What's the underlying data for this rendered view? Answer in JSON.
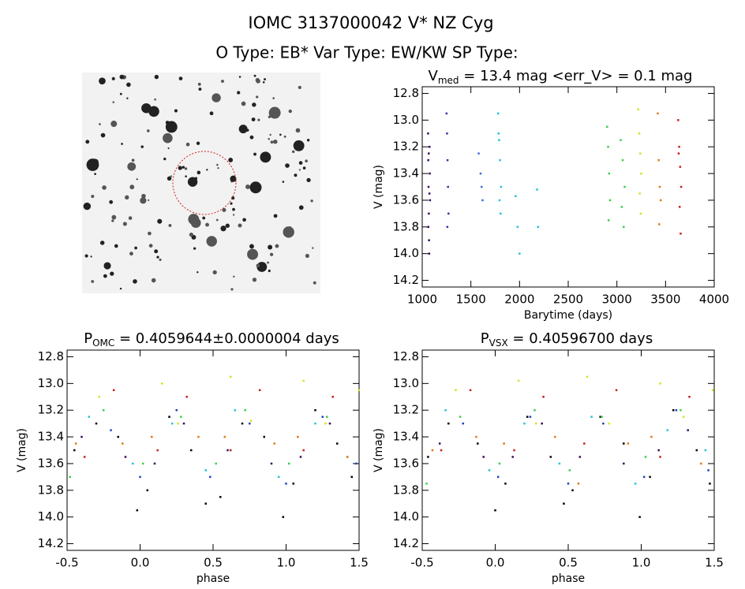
{
  "header": {
    "title": "IOMC 3137000042   V* NZ Cyg",
    "subtitle": "O Type: EB*  Var Type: EW/KW  SP Type:"
  },
  "chart_data": [
    {
      "type": "scatter",
      "title": {
        "main": "V",
        "sub": "med",
        "rest": " = 13.4 mag <err_V> = 0.1 mag"
      },
      "xlabel": "Barytime (days)",
      "ylabel": "V (mag)",
      "xlim": [
        1000,
        4000
      ],
      "xticks": [
        1000,
        1500,
        2000,
        2500,
        3000,
        3500,
        4000
      ],
      "ylim": [
        14.25,
        12.75
      ],
      "yticks": [
        12.8,
        {
          "value": 13,
          "label": "13.0"
        },
        13.2,
        13.4,
        13.6,
        13.8,
        {
          "value": 14,
          "label": "14.0"
        },
        14.2
      ],
      "series": [
        {
          "color": "#3a0a5e",
          "x": [
            1060,
            1062,
            1065,
            1068,
            1070,
            1072,
            1075,
            1078,
            1080,
            1063,
            1067,
            1074
          ],
          "values": [
            13.1,
            13.3,
            13.5,
            13.7,
            13.9,
            14.0,
            13.2,
            13.4,
            13.6,
            13.8,
            13.25,
            13.55
          ]
        },
        {
          "color": "#4b2ca8",
          "x": [
            1250,
            1255,
            1260,
            1265,
            1270,
            1258
          ],
          "values": [
            12.95,
            13.1,
            13.3,
            13.5,
            13.7,
            13.8
          ]
        },
        {
          "color": "#3a6fd8",
          "x": [
            1580,
            1600,
            1620,
            1610
          ],
          "values": [
            13.25,
            13.4,
            13.6,
            13.5
          ]
        },
        {
          "color": "#22c2e0",
          "x": [
            1780,
            1790,
            1800,
            1810,
            1795,
            1805,
            1785,
            1980,
            2000,
            2180,
            2190,
            1960
          ],
          "values": [
            12.95,
            13.15,
            13.3,
            13.5,
            13.6,
            13.7,
            13.1,
            13.8,
            14.0,
            13.52,
            13.8,
            13.57
          ]
        },
        {
          "color": "#3ad048",
          "x": [
            2900,
            2910,
            2920,
            2930,
            2915,
            3040,
            3060,
            3080,
            3050,
            3070
          ],
          "values": [
            13.05,
            13.2,
            13.4,
            13.6,
            13.75,
            13.15,
            13.3,
            13.5,
            13.65,
            13.8
          ]
        },
        {
          "color": "#d8e020",
          "x": [
            3220,
            3230,
            3240,
            3250,
            3235,
            3245
          ],
          "values": [
            12.92,
            13.1,
            13.25,
            13.4,
            13.55,
            13.7
          ]
        },
        {
          "color": "#e07818",
          "x": [
            3420,
            3430,
            3440,
            3450,
            3435
          ],
          "values": [
            12.95,
            13.3,
            13.5,
            13.6,
            13.78
          ]
        },
        {
          "color": "#c8201c",
          "x": [
            3630,
            3640,
            3650,
            3660,
            3645,
            3655,
            3635
          ],
          "values": [
            13.0,
            13.2,
            13.35,
            13.5,
            13.65,
            13.85,
            13.25
          ]
        }
      ]
    },
    {
      "type": "scatter",
      "title": {
        "main": "P",
        "sub": "OMC",
        "rest": " = 0.4059644±0.0000004 days"
      },
      "xlabel": "phase",
      "ylabel": "V (mag)",
      "xlim": [
        -0.5,
        1.5
      ],
      "xticks": [
        -0.5,
        {
          "value": 0,
          "label": "0.0"
        },
        0.5,
        {
          "value": 1,
          "label": "1.0"
        },
        1.5
      ],
      "ylim": [
        14.25,
        12.75
      ],
      "yticks": [
        12.8,
        {
          "value": 13,
          "label": "13.0"
        },
        13.2,
        13.4,
        13.6,
        13.8,
        {
          "value": 14,
          "label": "14.0"
        },
        14.2
      ],
      "series": [
        {
          "color": "#000000",
          "x": [
            -0.45,
            -0.3,
            -0.15,
            -0.02,
            0.05,
            0.2,
            0.35,
            0.45,
            0.55,
            0.7,
            0.85,
            0.98,
            1.05,
            1.2,
            1.35,
            1.45
          ],
          "values": [
            13.5,
            13.3,
            13.4,
            13.95,
            13.8,
            13.25,
            13.5,
            13.9,
            13.85,
            13.3,
            13.4,
            14.0,
            13.75,
            13.2,
            13.45,
            13.7
          ]
        },
        {
          "color": "#3a0a5e",
          "x": [
            -0.4,
            -0.1,
            0.1,
            0.3,
            0.6,
            0.9,
            1.1,
            1.3
          ],
          "values": [
            13.4,
            13.55,
            13.6,
            13.3,
            13.5,
            13.6,
            13.55,
            13.3
          ]
        },
        {
          "color": "#2040c0",
          "x": [
            -0.2,
            0.0,
            0.25,
            0.48,
            0.75,
            1.0,
            1.25,
            1.48
          ],
          "values": [
            13.35,
            13.7,
            13.2,
            13.7,
            13.3,
            13.75,
            13.25,
            13.6
          ]
        },
        {
          "color": "#22c2e0",
          "x": [
            -0.35,
            -0.05,
            0.22,
            0.45,
            0.65,
            0.95,
            1.2,
            1.42
          ],
          "values": [
            13.25,
            13.6,
            13.3,
            13.65,
            13.2,
            13.7,
            13.3,
            13.55
          ]
        },
        {
          "color": "#3ad048",
          "x": [
            -0.48,
            -0.25,
            0.02,
            0.28,
            0.52,
            0.72,
            1.02,
            1.28
          ],
          "values": [
            13.7,
            13.2,
            13.6,
            13.25,
            13.6,
            13.2,
            13.6,
            13.25
          ]
        },
        {
          "color": "#d8e020",
          "x": [
            -0.28,
            0.15,
            0.26,
            0.62,
            0.76,
            1.12,
            1.27,
            1.5
          ],
          "values": [
            13.1,
            13.0,
            13.3,
            12.95,
            13.28,
            12.98,
            13.3,
            13.05
          ]
        },
        {
          "color": "#e07818",
          "x": [
            -0.44,
            -0.12,
            0.08,
            0.4,
            0.58,
            0.92,
            1.08,
            1.42
          ],
          "values": [
            13.45,
            13.45,
            13.4,
            13.4,
            13.4,
            13.45,
            13.4,
            13.55
          ]
        },
        {
          "color": "#c8201c",
          "x": [
            -0.38,
            -0.18,
            0.12,
            0.32,
            0.62,
            0.82,
            1.12,
            1.32
          ],
          "values": [
            13.55,
            13.05,
            13.5,
            13.1,
            13.5,
            13.05,
            13.5,
            13.1
          ]
        }
      ]
    },
    {
      "type": "scatter",
      "title": {
        "main": "P",
        "sub": "VSX",
        "rest": " = 0.40596700 days"
      },
      "xlabel": "phase",
      "ylabel": "V (mag)",
      "xlim": [
        -0.5,
        1.5
      ],
      "xticks": [
        -0.5,
        {
          "value": 0,
          "label": "0.0"
        },
        0.5,
        {
          "value": 1,
          "label": "1.0"
        },
        1.5
      ],
      "ylim": [
        14.25,
        12.75
      ],
      "yticks": [
        12.8,
        {
          "value": 13,
          "label": "13.0"
        },
        13.2,
        13.4,
        13.6,
        13.8,
        {
          "value": 14,
          "label": "14.0"
        },
        14.2
      ],
      "series": [
        {
          "color": "#000000",
          "x": [
            -0.46,
            -0.32,
            -0.12,
            0.0,
            0.07,
            0.22,
            0.38,
            0.47,
            0.53,
            0.72,
            0.88,
            0.99,
            1.06,
            1.22,
            1.38,
            1.47
          ],
          "values": [
            13.55,
            13.3,
            13.45,
            13.95,
            13.75,
            13.25,
            13.55,
            13.9,
            13.8,
            13.25,
            13.45,
            14.0,
            13.7,
            13.2,
            13.5,
            13.75
          ]
        },
        {
          "color": "#3a0a5e",
          "x": [
            -0.38,
            -0.08,
            0.12,
            0.32,
            0.58,
            0.88,
            1.12,
            1.32
          ],
          "values": [
            13.45,
            13.55,
            13.55,
            13.3,
            13.55,
            13.6,
            13.5,
            13.35
          ]
        },
        {
          "color": "#2040c0",
          "x": [
            -0.22,
            0.02,
            0.24,
            0.5,
            0.74,
            1.02,
            1.24,
            1.46
          ],
          "values": [
            13.3,
            13.7,
            13.25,
            13.75,
            13.3,
            13.7,
            13.2,
            13.65
          ]
        },
        {
          "color": "#22c2e0",
          "x": [
            -0.34,
            -0.04,
            0.2,
            0.44,
            0.66,
            0.96,
            1.18,
            1.44
          ],
          "values": [
            13.2,
            13.65,
            13.3,
            13.6,
            13.25,
            13.75,
            13.35,
            13.5
          ]
        },
        {
          "color": "#3ad048",
          "x": [
            -0.47,
            -0.24,
            0.03,
            0.27,
            0.51,
            0.73,
            1.03,
            1.27
          ],
          "values": [
            13.75,
            13.25,
            13.6,
            13.2,
            13.65,
            13.25,
            13.55,
            13.2
          ]
        },
        {
          "color": "#d8e020",
          "x": [
            -0.27,
            0.16,
            0.28,
            0.63,
            0.78,
            1.13,
            1.29,
            1.49
          ],
          "values": [
            13.05,
            12.98,
            13.3,
            12.95,
            13.3,
            13.0,
            13.25,
            13.05
          ]
        },
        {
          "color": "#e07818",
          "x": [
            -0.43,
            -0.13,
            0.06,
            0.41,
            0.57,
            0.91,
            1.07,
            1.41
          ],
          "values": [
            13.5,
            13.4,
            13.45,
            13.4,
            13.75,
            13.45,
            13.4,
            13.6
          ]
        },
        {
          "color": "#c8201c",
          "x": [
            -0.37,
            -0.17,
            0.13,
            0.33,
            0.61,
            0.83,
            1.13,
            1.33
          ],
          "values": [
            13.5,
            13.05,
            13.5,
            13.1,
            13.45,
            13.05,
            13.55,
            13.1
          ]
        }
      ]
    }
  ]
}
